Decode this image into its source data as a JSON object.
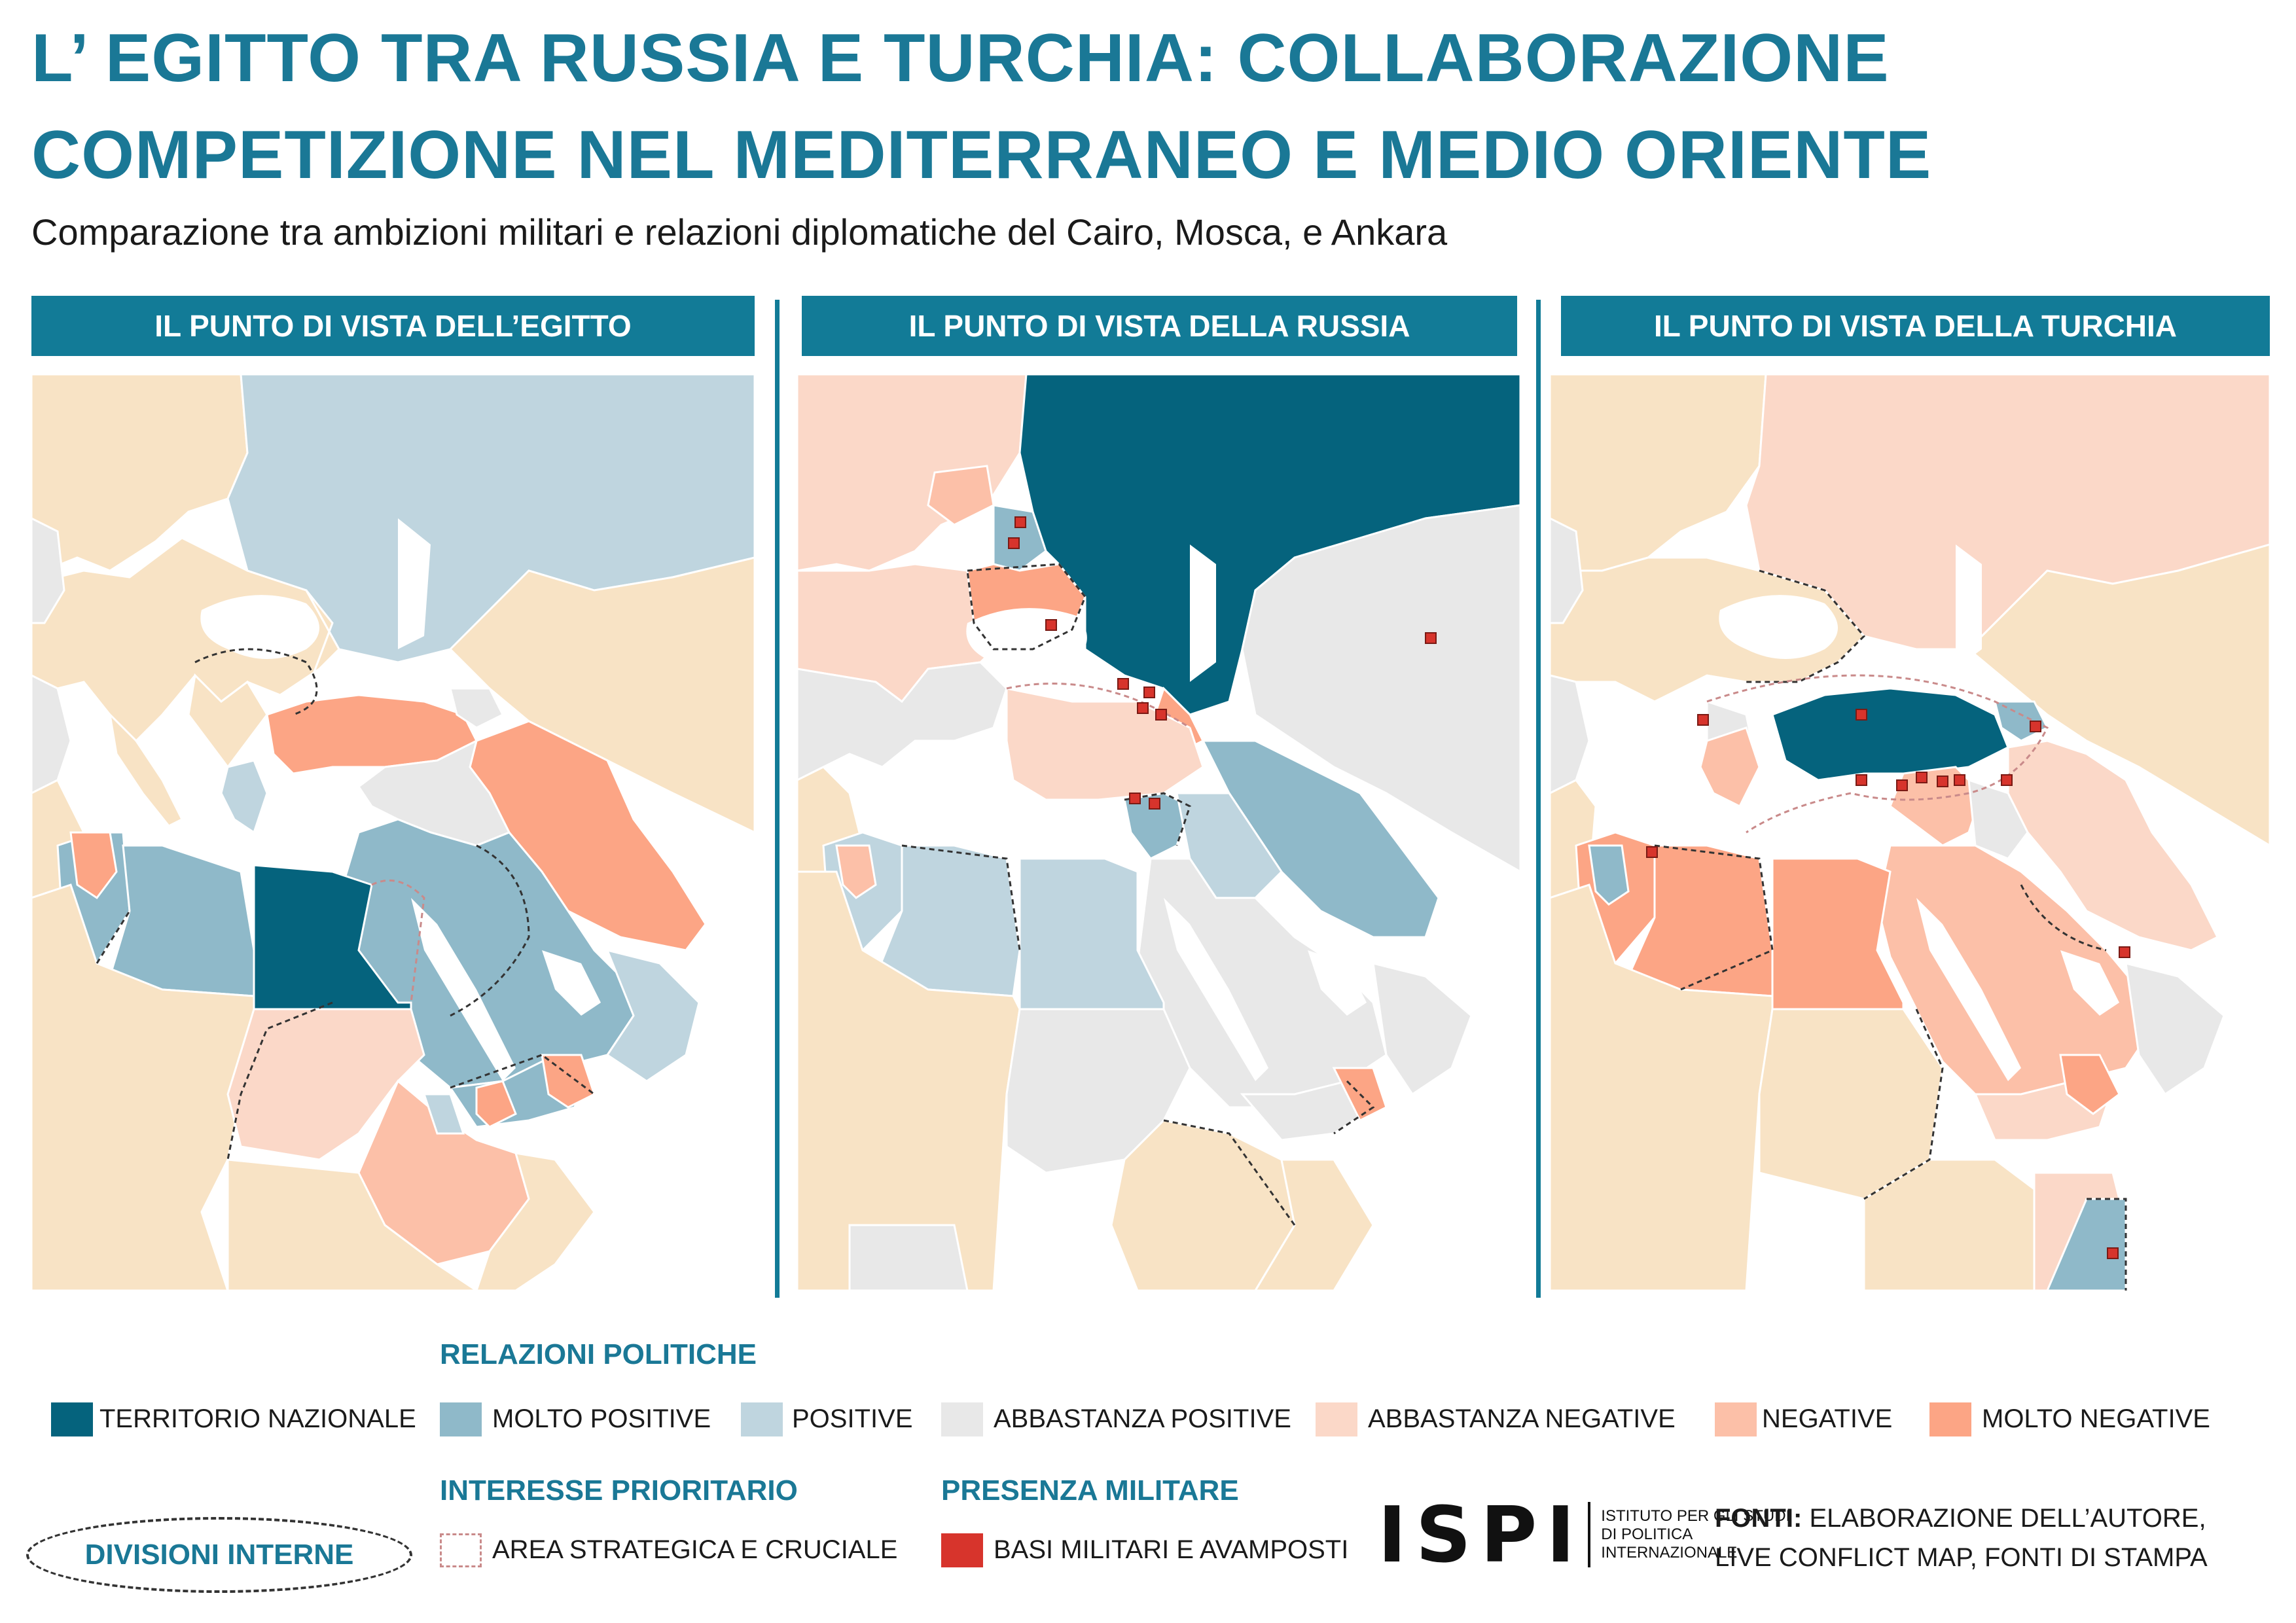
{
  "header": {
    "title_line1": "L’ EGITTO TRA RUSSIA E TURCHIA: COLLABORAZIONE",
    "title_line2": "COMPETIZIONE NEL MEDITERRANEO E MEDIO ORIENTE",
    "subtitle": "Comparazione tra ambizioni militari e relazioni diplomatiche del Cairo, Mosca, e Ankara"
  },
  "panels": [
    {
      "title": "IL PUNTO DI VISTA DELL’EGITTO"
    },
    {
      "title": "IL PUNTO DI VISTA DELLA RUSSIA"
    },
    {
      "title": "IL PUNTO DI VISTA DELLA TURCHIA"
    }
  ],
  "legend": {
    "political_title": "RELAZIONI POLITICHE",
    "categories": [
      {
        "label": "TERRITORIO NAZIONALE",
        "color": "#05637d"
      },
      {
        "label": "MOLTO POSITIVE",
        "color": "#8fb9c9"
      },
      {
        "label": "POSITIVE",
        "color": "#bfd5df"
      },
      {
        "label": "ABBASTANZA POSITIVE",
        "color": "#e8e8e8"
      },
      {
        "label": "ABBASTANZA NEGATIVE",
        "color": "#fbd8c8"
      },
      {
        "label": "NEGATIVE",
        "color": "#fcc0a8"
      },
      {
        "label": "MOLTO NEGATIVE",
        "color": "#fca585"
      }
    ],
    "divisions_label": "DIVISIONI INTERNE",
    "priority_title": "INTERESSE PRIORITARIO",
    "priority_label": "AREA STRATEGICA E CRUCIALE",
    "military_title": "PRESENZA MILITARE",
    "military_label": "BASI MILITARI E AVAMPOSTI",
    "military_color": "#d7342c",
    "neutral_color": "#f8e3c5",
    "sea_color": "#ffffff"
  },
  "logo": {
    "letters": "ISPI",
    "line1": "ISTITUTO PER GLI STUDI",
    "line2": "DI POLITICA",
    "line3": "INTERNAZIONALE"
  },
  "sources": {
    "label": "FONTI:",
    "line1": "ELABORAZIONE DELL’AUTORE,",
    "line2": "LIVE CONFLICT MAP,  FONTI DI STAMPA"
  }
}
